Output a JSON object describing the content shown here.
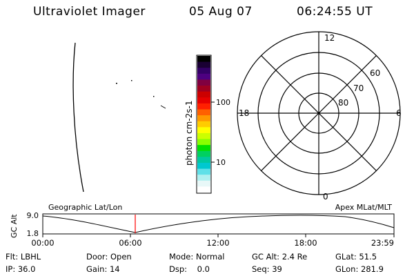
{
  "header": {
    "instrument": "Ultraviolet Imager",
    "date": "05 Aug 07",
    "time": "06:24:55 UT"
  },
  "colorbar": {
    "label": "photon cm-2s-1",
    "tick_labels": [
      "100",
      "10"
    ],
    "colors": [
      "#000000",
      "#1a0033",
      "#330066",
      "#4d0080",
      "#800040",
      "#a00020",
      "#cc0000",
      "#e60000",
      "#ff2000",
      "#ff6000",
      "#ff9900",
      "#ffcc00",
      "#ffff00",
      "#ccff00",
      "#88ff00",
      "#00e000",
      "#00d060",
      "#00c8a0",
      "#00c8d0",
      "#60e0e8",
      "#b0f0f0",
      "#e8f8f8",
      "#ffffff"
    ]
  },
  "polar": {
    "mlt_labels": [
      "12",
      "18",
      "6",
      "0"
    ],
    "lat_labels": [
      "60",
      "70",
      "80"
    ]
  },
  "altitude_plot": {
    "left_label": "Geographic Lat/Lon",
    "right_label": "Apex MLat/MLT",
    "axis_label": "GC Alt",
    "y_ticks": [
      "9.0",
      "1.8"
    ],
    "x_ticks": [
      "00:00",
      "06:00",
      "12:00",
      "18:00",
      "23:59"
    ]
  },
  "info": {
    "filter_label": "Flt:",
    "filter_value": "LBHL",
    "door_label": "Door:",
    "door_value": "Open",
    "mode_label": "Mode:",
    "mode_value": "Normal",
    "gcalt_label": "GC Alt:",
    "gcalt_value": "2.4 Re",
    "glat_label": "GLat:",
    "glat_value": "51.5",
    "ip_label": "IP:",
    "ip_value": "36.0",
    "gain_label": "Gain:",
    "gain_value": "14",
    "dsp_label": "Dsp:",
    "dsp_value": "0.0",
    "seq_label": "Seq:",
    "seq_value": "39",
    "glon_label": "GLon:",
    "glon_value": "281.9"
  }
}
